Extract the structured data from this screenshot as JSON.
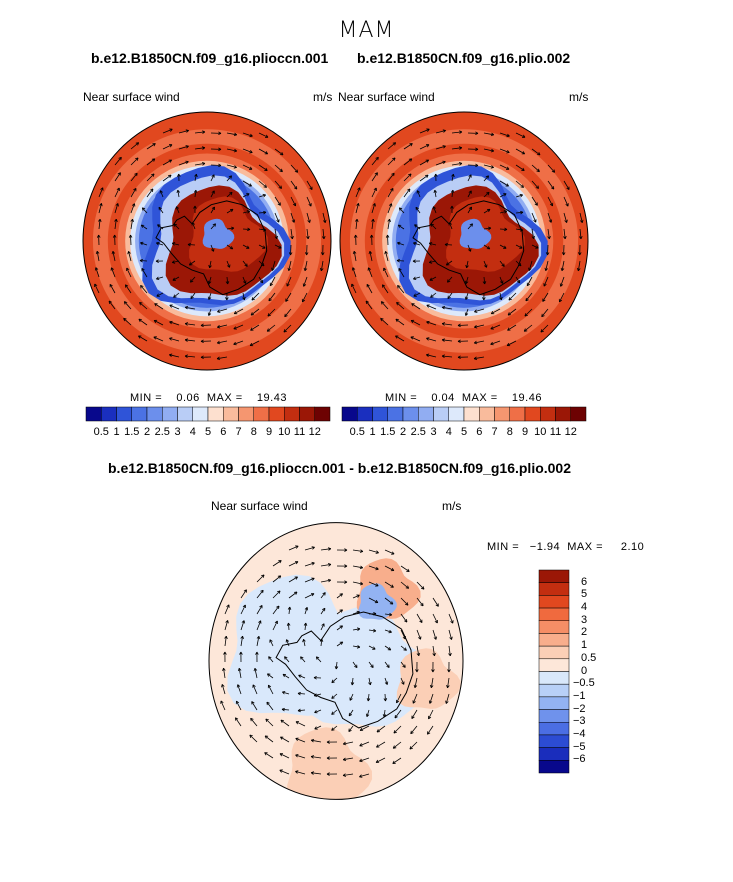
{
  "season": "MAM",
  "case_a": "b.e12.B1850CN.f09_g16.plioccn.001",
  "case_b": "b.e12.B1850CN.f09_g16.plio.002",
  "diff_title": "b.e12.B1850CN.f09_g16.plioccn.001 - b.e12.B1850CN.f09_g16.plio.002",
  "panels": [
    {
      "variable": "Near surface wind",
      "units": "m/s",
      "stats": "MIN =    0.06  MAX =    19.43"
    },
    {
      "variable": "Near surface wind",
      "units": "m/s",
      "stats": "MIN =    0.04  MAX =    19.46"
    },
    {
      "variable": "Near surface wind",
      "units": "m/s",
      "stats": "MIN =   −1.94  MAX =     2.10"
    }
  ],
  "chart_data": [
    {
      "type": "heatmap",
      "projection": "south-polar-stereographic",
      "field": "near surface wind speed with wind vectors",
      "case": "b.e12.B1850CN.f09_g16.plioccn.001",
      "min": 0.06,
      "max": 19.43,
      "colorbar_levels": [
        "0.5",
        "1",
        "1.5",
        "2",
        "2.5",
        "3",
        "4",
        "5",
        "6",
        "7",
        "8",
        "9",
        "10",
        "11",
        "12"
      ],
      "colorbar_colors": [
        "#08088c",
        "#1a2fbf",
        "#2f54d8",
        "#4b72e4",
        "#6c8fec",
        "#91adf2",
        "#b9cdf6",
        "#dde9fb",
        "#fde0cf",
        "#f9bb9c",
        "#f59670",
        "#ef6f47",
        "#e1481f",
        "#c32e10",
        "#9b1706",
        "#6d0202"
      ]
    },
    {
      "type": "heatmap",
      "projection": "south-polar-stereographic",
      "field": "near surface wind speed with wind vectors",
      "case": "b.e12.B1850CN.f09_g16.plio.002",
      "min": 0.04,
      "max": 19.46,
      "colorbar_levels": [
        "0.5",
        "1",
        "1.5",
        "2",
        "2.5",
        "3",
        "4",
        "5",
        "6",
        "7",
        "8",
        "9",
        "10",
        "11",
        "12"
      ],
      "colorbar_colors": [
        "#08088c",
        "#1a2fbf",
        "#2f54d8",
        "#4b72e4",
        "#6c8fec",
        "#91adf2",
        "#b9cdf6",
        "#dde9fb",
        "#fde0cf",
        "#f9bb9c",
        "#f59670",
        "#ef6f47",
        "#e1481f",
        "#c32e10",
        "#9b1706",
        "#6d0202"
      ]
    },
    {
      "type": "heatmap",
      "projection": "south-polar-stereographic",
      "field": "near surface wind difference with wind vectors",
      "min": -1.94,
      "max": 2.1,
      "colorbar_levels": [
        "6",
        "5",
        "4",
        "3",
        "2",
        "1",
        "0.5",
        "0",
        "−0.5",
        "−1",
        "−2",
        "−3",
        "−4",
        "−5",
        "−6"
      ],
      "colorbar_colors": [
        "#9b1706",
        "#c32e10",
        "#e1481f",
        "#f06a3e",
        "#f58e66",
        "#f8ae8c",
        "#fbcfb6",
        "#fde7d9",
        "#d9e8fb",
        "#b8d0f7",
        "#93b3f2",
        "#6f92ec",
        "#4b6ee3",
        "#2c4cd3",
        "#1a2dbc",
        "#08088c"
      ]
    }
  ]
}
